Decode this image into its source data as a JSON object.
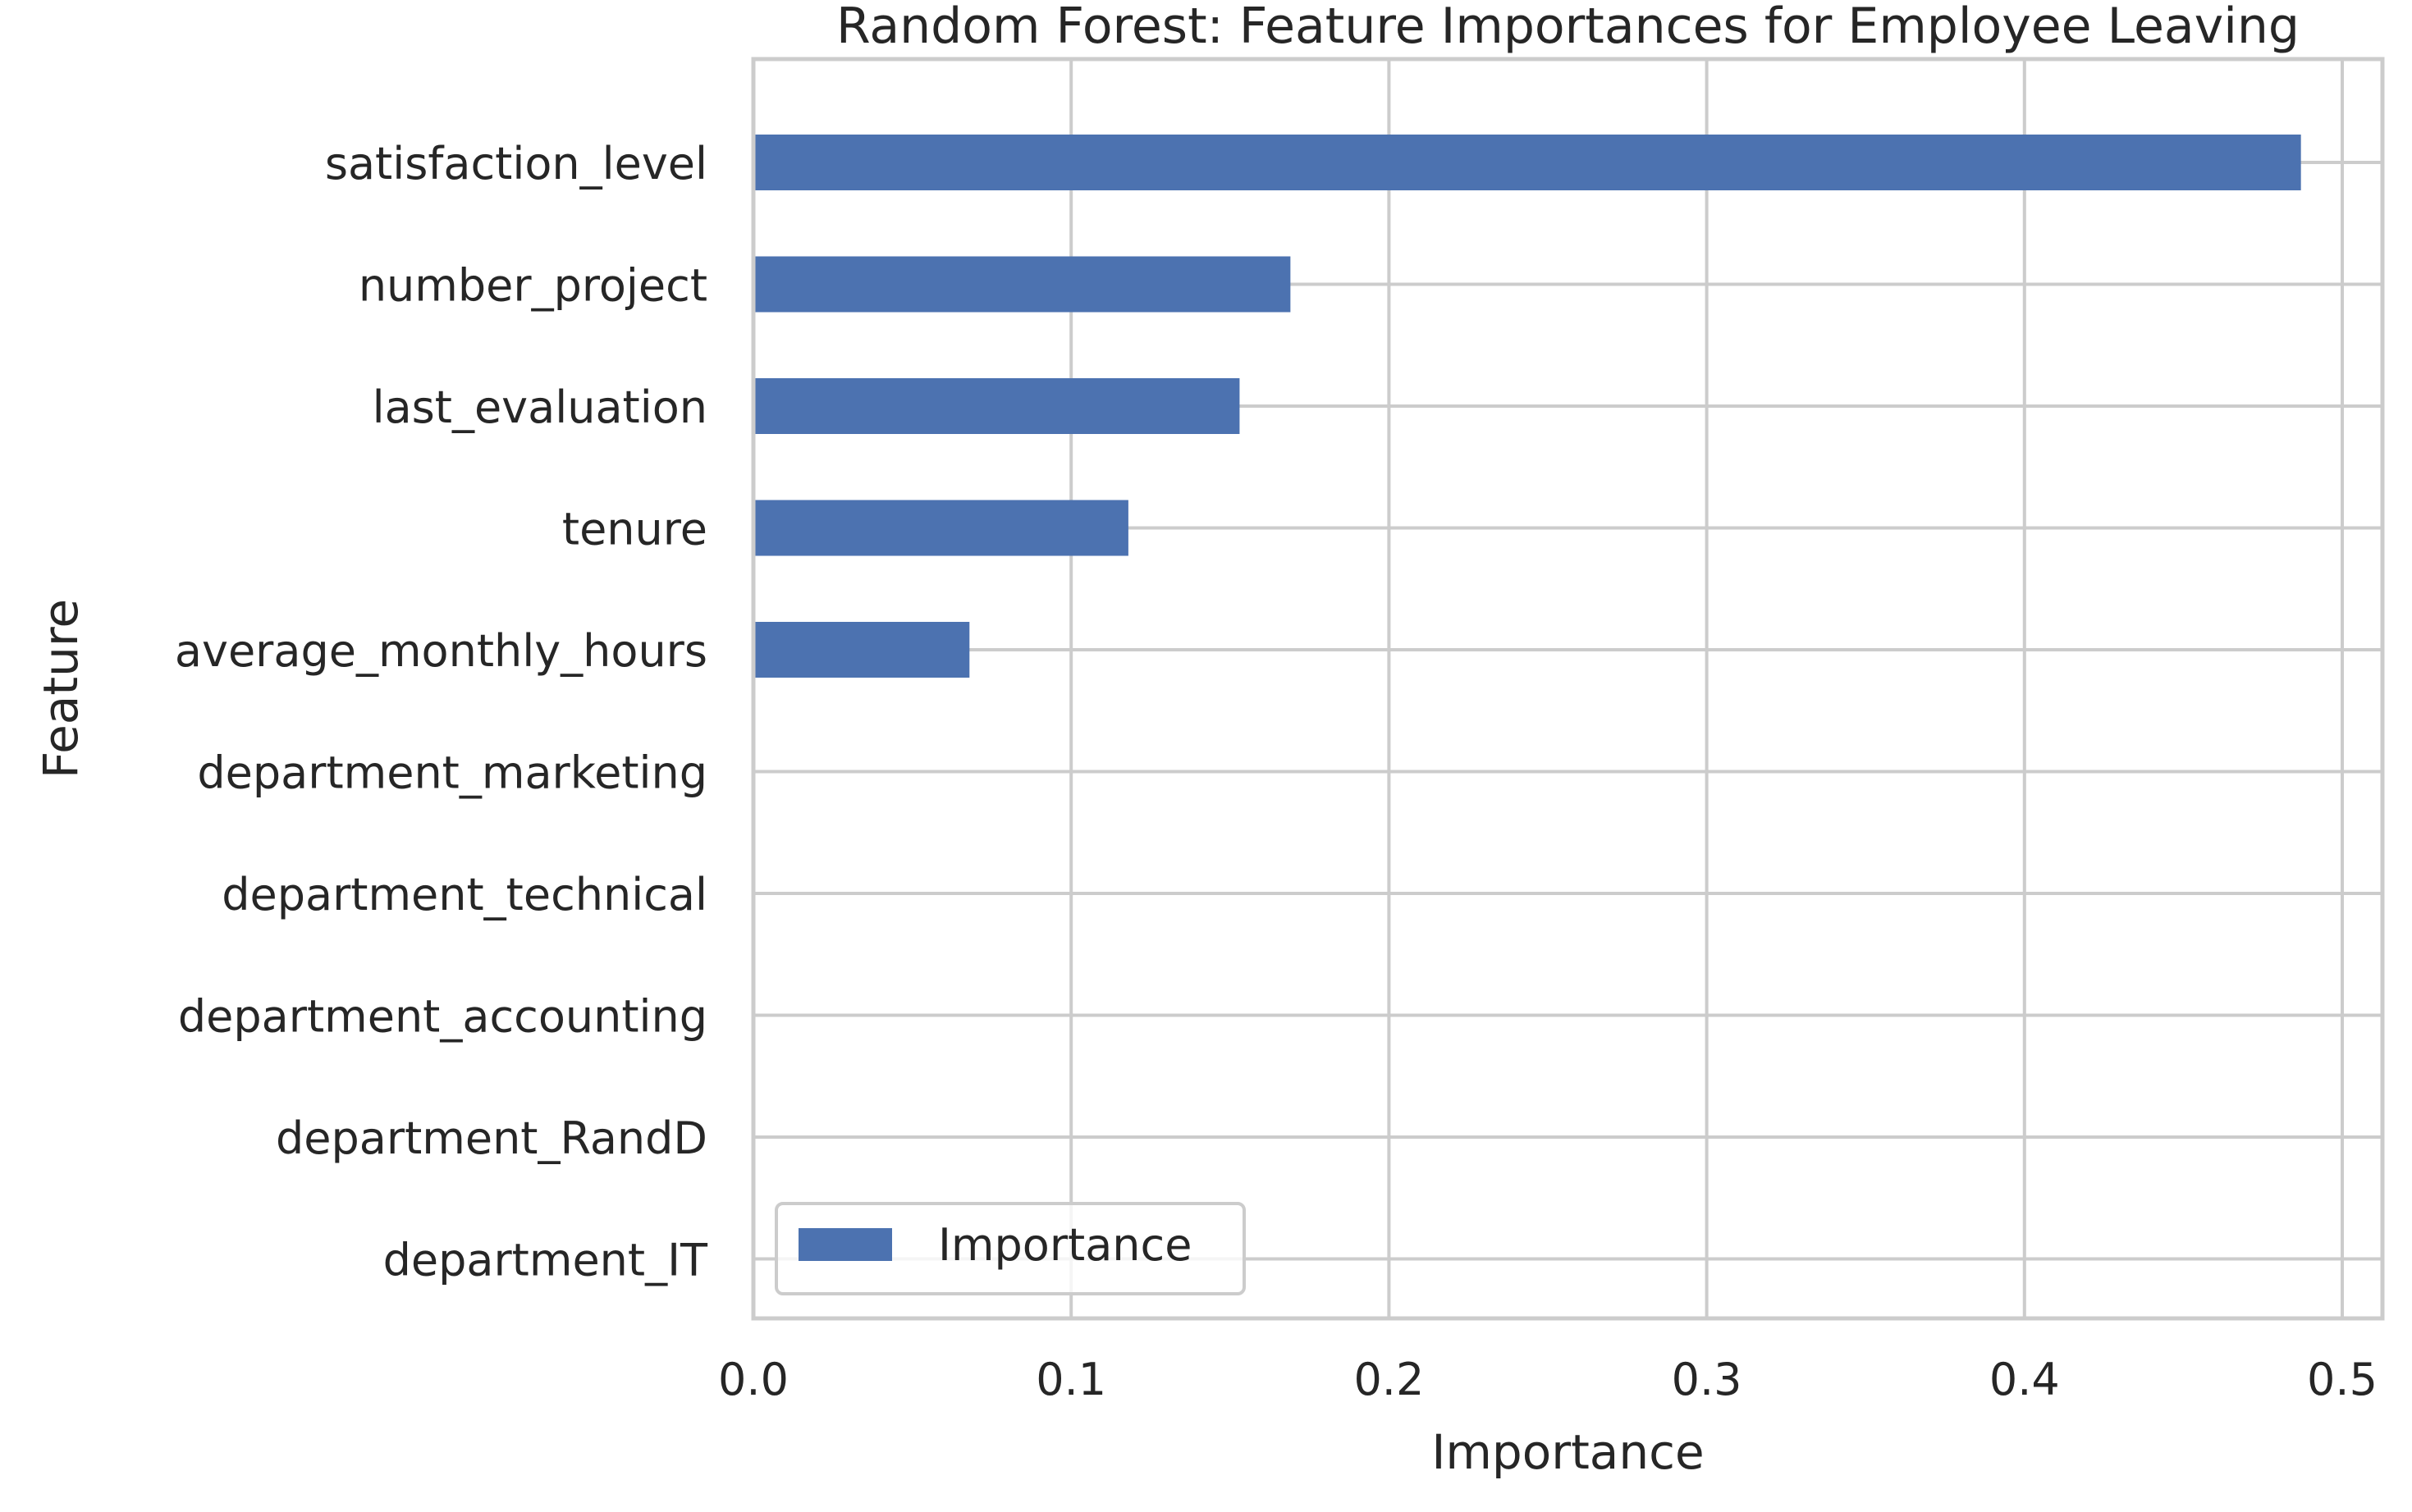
{
  "chart_data": {
    "type": "bar",
    "orientation": "horizontal",
    "title": "Random Forest: Feature Importances for Employee Leaving",
    "xlabel": "Importance",
    "ylabel": "Feature",
    "xlim": [
      0,
      0.51
    ],
    "xticks": [
      0.0,
      0.1,
      0.2,
      0.3,
      0.4,
      0.5
    ],
    "xtick_labels": [
      "0.0",
      "0.1",
      "0.2",
      "0.3",
      "0.4",
      "0.5"
    ],
    "grid": true,
    "legend": {
      "position": "lower-left",
      "entries": [
        "Importance"
      ]
    },
    "categories": [
      "satisfaction_level",
      "number_project",
      "last_evaluation",
      "tenure",
      "average_monthly_hours",
      "department_marketing",
      "department_technical",
      "department_accounting",
      "department_RandD",
      "department_IT"
    ],
    "series": [
      {
        "name": "Importance",
        "color": "#4c72b0",
        "values": [
          0.487,
          0.169,
          0.153,
          0.118,
          0.068,
          0.0,
          0.0,
          0.0,
          0.0,
          0.0
        ]
      }
    ]
  }
}
